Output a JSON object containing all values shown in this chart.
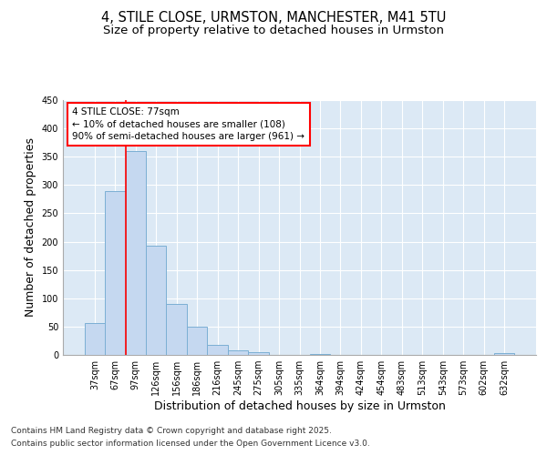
{
  "title_line1": "4, STILE CLOSE, URMSTON, MANCHESTER, M41 5TU",
  "title_line2": "Size of property relative to detached houses in Urmston",
  "categories": [
    "37sqm",
    "67sqm",
    "97sqm",
    "126sqm",
    "156sqm",
    "186sqm",
    "216sqm",
    "245sqm",
    "275sqm",
    "305sqm",
    "335sqm",
    "364sqm",
    "394sqm",
    "424sqm",
    "454sqm",
    "483sqm",
    "513sqm",
    "543sqm",
    "573sqm",
    "602sqm",
    "632sqm"
  ],
  "values": [
    57,
    290,
    360,
    193,
    90,
    50,
    18,
    8,
    5,
    0,
    0,
    1,
    0,
    0,
    0,
    0,
    0,
    0,
    0,
    0,
    4
  ],
  "bar_color": "#c5d8f0",
  "bar_edge_color": "#7bafd4",
  "bg_color": "#dce9f5",
  "grid_color": "#ffffff",
  "ylabel": "Number of detached properties",
  "xlabel": "Distribution of detached houses by size in Urmston",
  "ylim": [
    0,
    450
  ],
  "yticks": [
    0,
    50,
    100,
    150,
    200,
    250,
    300,
    350,
    400,
    450
  ],
  "annotation_text": "4 STILE CLOSE: 77sqm\n← 10% of detached houses are smaller (108)\n90% of semi-detached houses are larger (961) →",
  "redline_x": 1.5,
  "footer_line1": "Contains HM Land Registry data © Crown copyright and database right 2025.",
  "footer_line2": "Contains public sector information licensed under the Open Government Licence v3.0.",
  "title1_fontsize": 10.5,
  "title2_fontsize": 9.5,
  "axis_label_fontsize": 9,
  "tick_fontsize": 7,
  "annotation_fontsize": 7.5,
  "footer_fontsize": 6.5
}
